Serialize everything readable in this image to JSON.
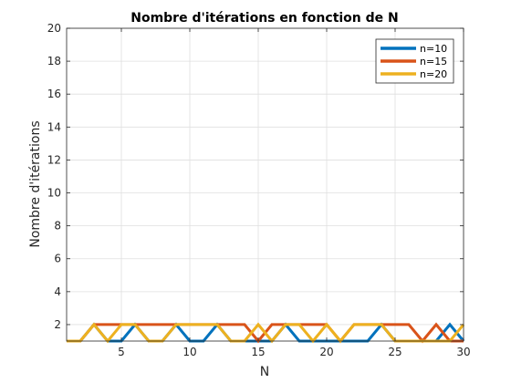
{
  "chart_data": {
    "type": "line",
    "title": "Nombre d'itérations en fonction de N",
    "xlabel": "N",
    "ylabel": "Nombre d'itérations",
    "xlim": [
      1,
      30
    ],
    "ylim": [
      1,
      20
    ],
    "xticks": [
      5,
      10,
      15,
      20,
      25,
      30
    ],
    "yticks": [
      2,
      4,
      6,
      8,
      10,
      12,
      14,
      16,
      18,
      20
    ],
    "grid": true,
    "legend": "top-right",
    "x": [
      1,
      2,
      3,
      4,
      5,
      6,
      7,
      8,
      9,
      10,
      11,
      12,
      13,
      14,
      15,
      16,
      17,
      18,
      19,
      20,
      21,
      22,
      23,
      24,
      25,
      26,
      27,
      28,
      29,
      30
    ],
    "series": [
      {
        "name": "n=10",
        "color": "#0072BD",
        "values": [
          1,
          1,
          2,
          1,
          1,
          2,
          1,
          1,
          2,
          1,
          1,
          2,
          1,
          1,
          1,
          1,
          2,
          1,
          1,
          1,
          1,
          1,
          1,
          2,
          1,
          1,
          1,
          1,
          2,
          1
        ]
      },
      {
        "name": "n=15",
        "color": "#D95319",
        "values": [
          1,
          1,
          2,
          2,
          2,
          2,
          2,
          2,
          2,
          2,
          2,
          2,
          2,
          2,
          1,
          2,
          2,
          2,
          2,
          2,
          1,
          2,
          2,
          2,
          2,
          2,
          1,
          2,
          1,
          1
        ]
      },
      {
        "name": "n=20",
        "color": "#EDB120",
        "values": [
          1,
          1,
          2,
          1,
          2,
          2,
          1,
          1,
          2,
          2,
          2,
          2,
          1,
          1,
          2,
          1,
          2,
          2,
          1,
          2,
          1,
          2,
          2,
          2,
          1,
          1,
          1,
          1,
          1,
          2
        ]
      }
    ]
  }
}
